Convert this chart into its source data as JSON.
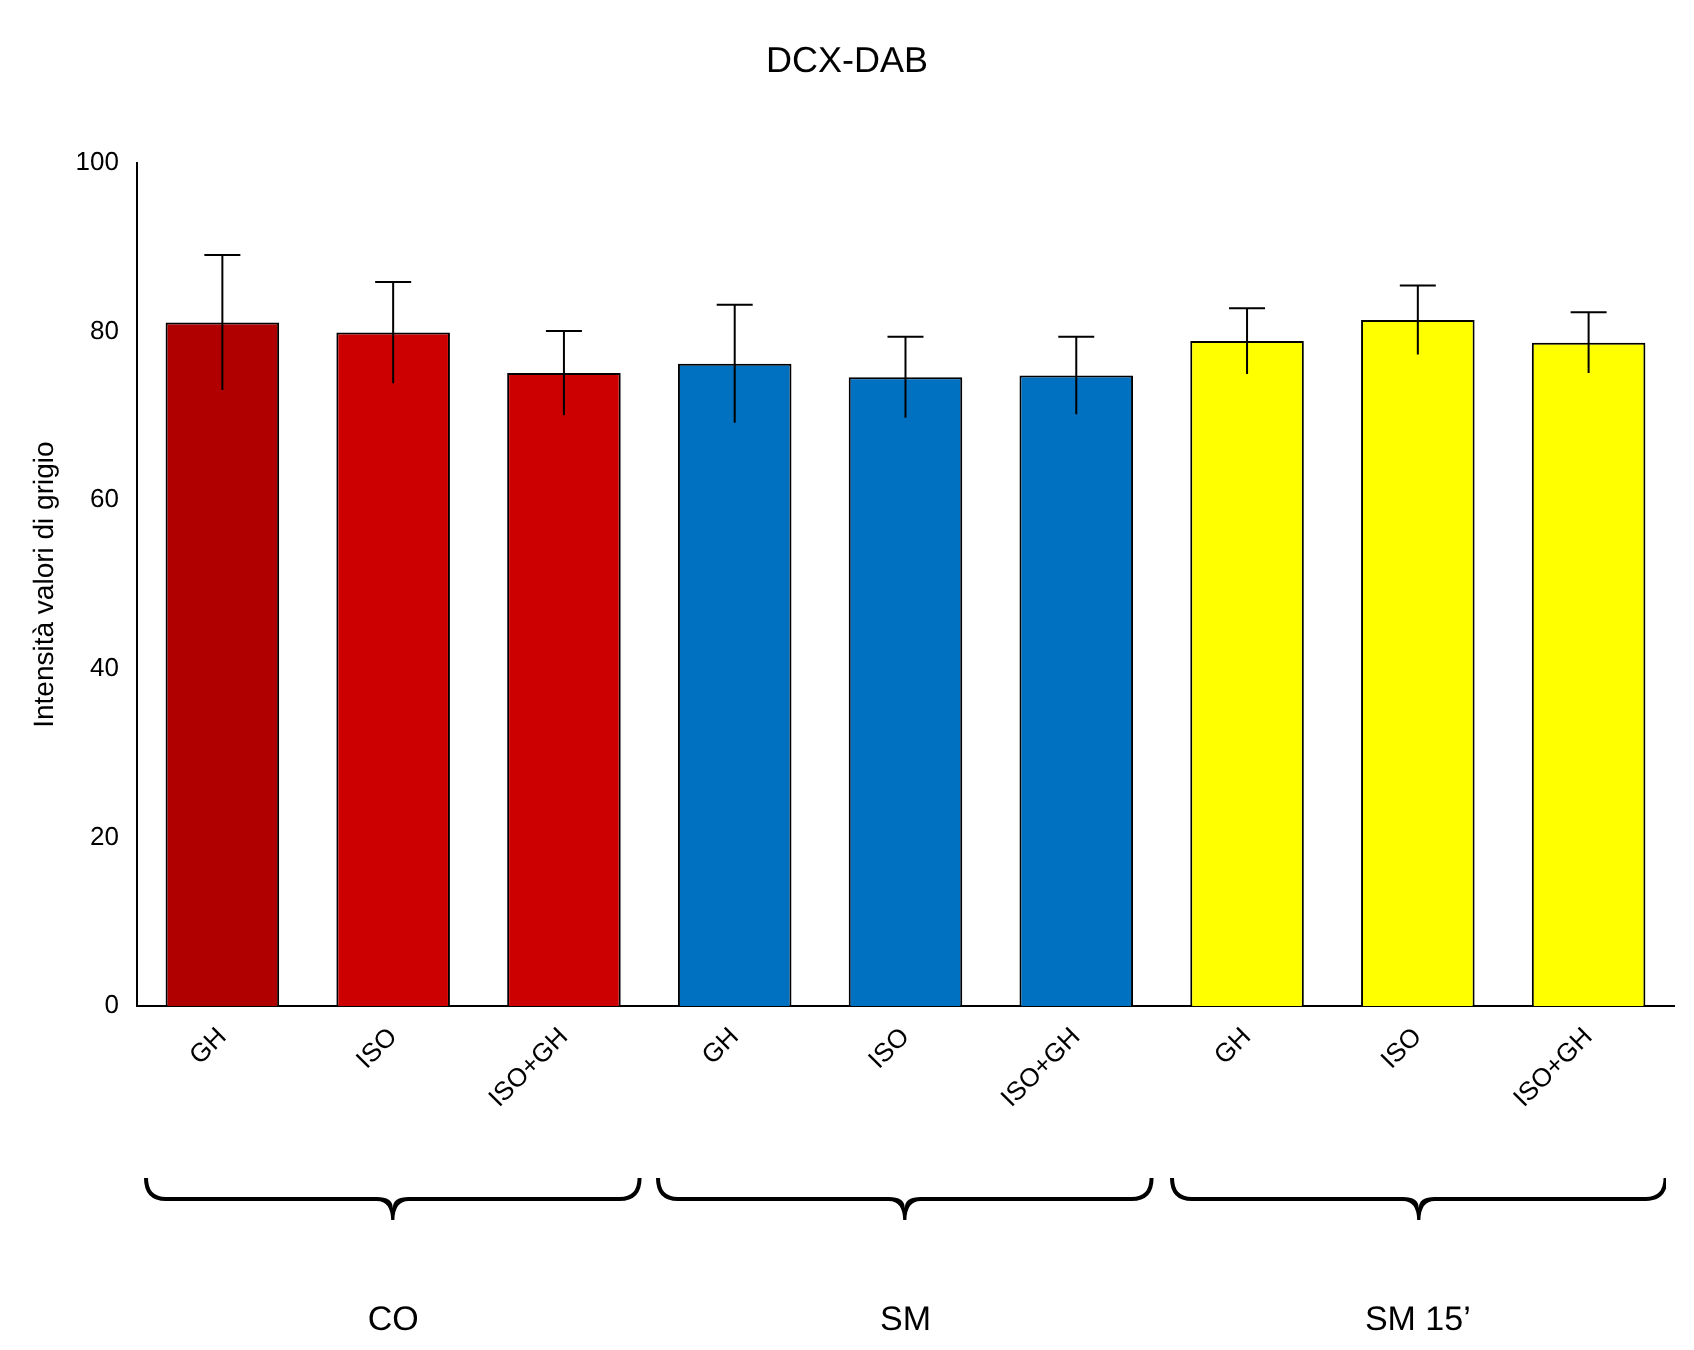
{
  "chart_data": {
    "type": "bar",
    "title": "DCX-DAB",
    "ylabel": "Intensità valori di grigio",
    "categories": [
      "GH",
      "ISO",
      "ISO+GH",
      "GH",
      "ISO",
      "ISO+GH",
      "GH",
      "ISO",
      "ISO+GH"
    ],
    "values": [
      81.1,
      79.9,
      75.1,
      76.2,
      74.6,
      74.8,
      78.9,
      81.4,
      78.7
    ],
    "errors": [
      8,
      6,
      5,
      7,
      4.8,
      4.6,
      3.9,
      4.1,
      3.6
    ],
    "colors": [
      "#b00000",
      "#cc0000",
      "#cc0000",
      "#0070c0",
      "#0070c0",
      "#0070c0",
      "#ffff00",
      "#ffff00",
      "#ffff00"
    ],
    "ylim": [
      0,
      100
    ],
    "yticks": [
      0,
      20,
      40,
      60,
      80,
      100
    ],
    "annotations": [
      "CO",
      "SM",
      "SM 15’"
    ]
  }
}
